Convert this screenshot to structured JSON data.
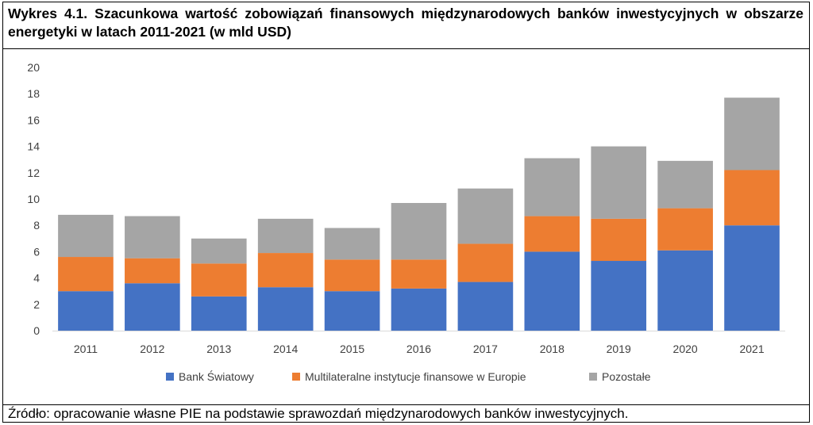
{
  "title": "Wykres 4.1. Szacunkowa wartość zobowiązań finansowych międzynarodowych banków inwestycyjnych w obszarze energetyki w latach 2011-2021 (w mld USD)",
  "source": "Źródło: opracowanie własne PIE na podstawie sprawozdań międzynarodowych banków inwestycyjnych.",
  "chart_data": {
    "type": "bar",
    "stacked": true,
    "categories": [
      "2011",
      "2012",
      "2013",
      "2014",
      "2015",
      "2016",
      "2017",
      "2018",
      "2019",
      "2020",
      "2021"
    ],
    "series": [
      {
        "name": "Bank Światowy",
        "color": "#4472C4",
        "values": [
          3.0,
          3.6,
          2.6,
          3.3,
          3.0,
          3.2,
          3.7,
          6.0,
          5.3,
          6.1,
          8.0
        ]
      },
      {
        "name": "Multilateralne instytucje finansowe w Europie",
        "color": "#ED7D31",
        "values": [
          2.6,
          1.9,
          2.5,
          2.6,
          2.4,
          2.2,
          2.9,
          2.7,
          3.2,
          3.2,
          4.2
        ]
      },
      {
        "name": "Pozostałe",
        "color": "#A5A5A5",
        "values": [
          3.2,
          3.2,
          1.9,
          2.6,
          2.4,
          4.3,
          4.2,
          4.4,
          5.5,
          3.6,
          5.5
        ]
      }
    ],
    "ylim": [
      0,
      20
    ],
    "yticks": [
      "0",
      "2",
      "4",
      "6",
      "8",
      "10",
      "12",
      "14",
      "16",
      "18",
      "20"
    ],
    "grid": false,
    "legend": "bottom"
  }
}
